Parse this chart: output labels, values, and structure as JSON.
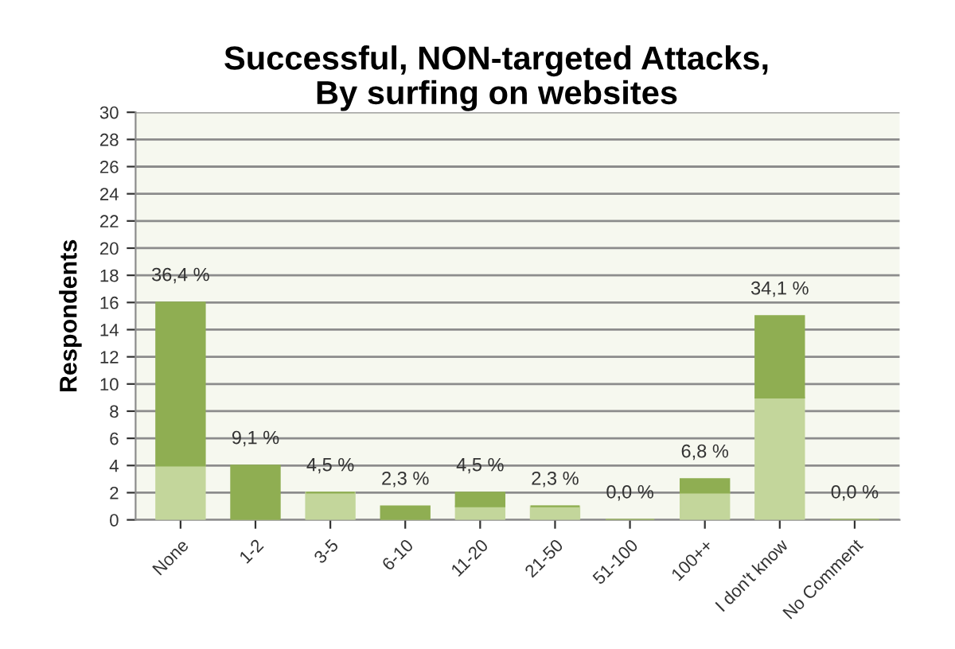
{
  "chart_data": {
    "type": "bar",
    "title": "Successful, NON-targeted Attacks,\nBy surfing on websites",
    "ylabel": "Respondents",
    "categories": [
      "None",
      "1-2",
      "3-5",
      "6-10",
      "11-20",
      "21-50",
      "51-100",
      "100++",
      "I don't know",
      "No Comment"
    ],
    "series": [
      {
        "color": "#c3d69b",
        "values": [
          4,
          0,
          2,
          0,
          1,
          1,
          0,
          2,
          9,
          0
        ]
      },
      {
        "color": "#8fae52",
        "values": [
          12,
          4,
          0,
          1,
          1,
          0,
          0,
          1,
          6,
          0
        ]
      }
    ],
    "annotations": [
      {
        "text": "36,4 %",
        "x": "None",
        "y": 16
      },
      {
        "text": "9,1 %",
        "x": "1-2",
        "y": 4
      },
      {
        "text": "4,5 %",
        "x": "3-5",
        "y": 2
      },
      {
        "text": "2,3 %",
        "x": "6-10",
        "y": 1
      },
      {
        "text": "4,5 %",
        "x": "11-20",
        "y": 2
      },
      {
        "text": "2,3 %",
        "x": "21-50",
        "y": 1
      },
      {
        "text": "0,0 %",
        "x": "51-100",
        "y": 0
      },
      {
        "text": "6,8 %",
        "x": "100++",
        "y": 3
      },
      {
        "text": "34,1 %",
        "x": "I don't know",
        "y": 15
      },
      {
        "text": "0,0 %",
        "x": "No Comment",
        "y": 0
      }
    ],
    "stacked": true,
    "ylim": [
      0,
      30
    ],
    "yticks": [
      0,
      2,
      4,
      6,
      8,
      10,
      12,
      14,
      16,
      18,
      20,
      22,
      24,
      26,
      28,
      30
    ],
    "grid": "y"
  }
}
